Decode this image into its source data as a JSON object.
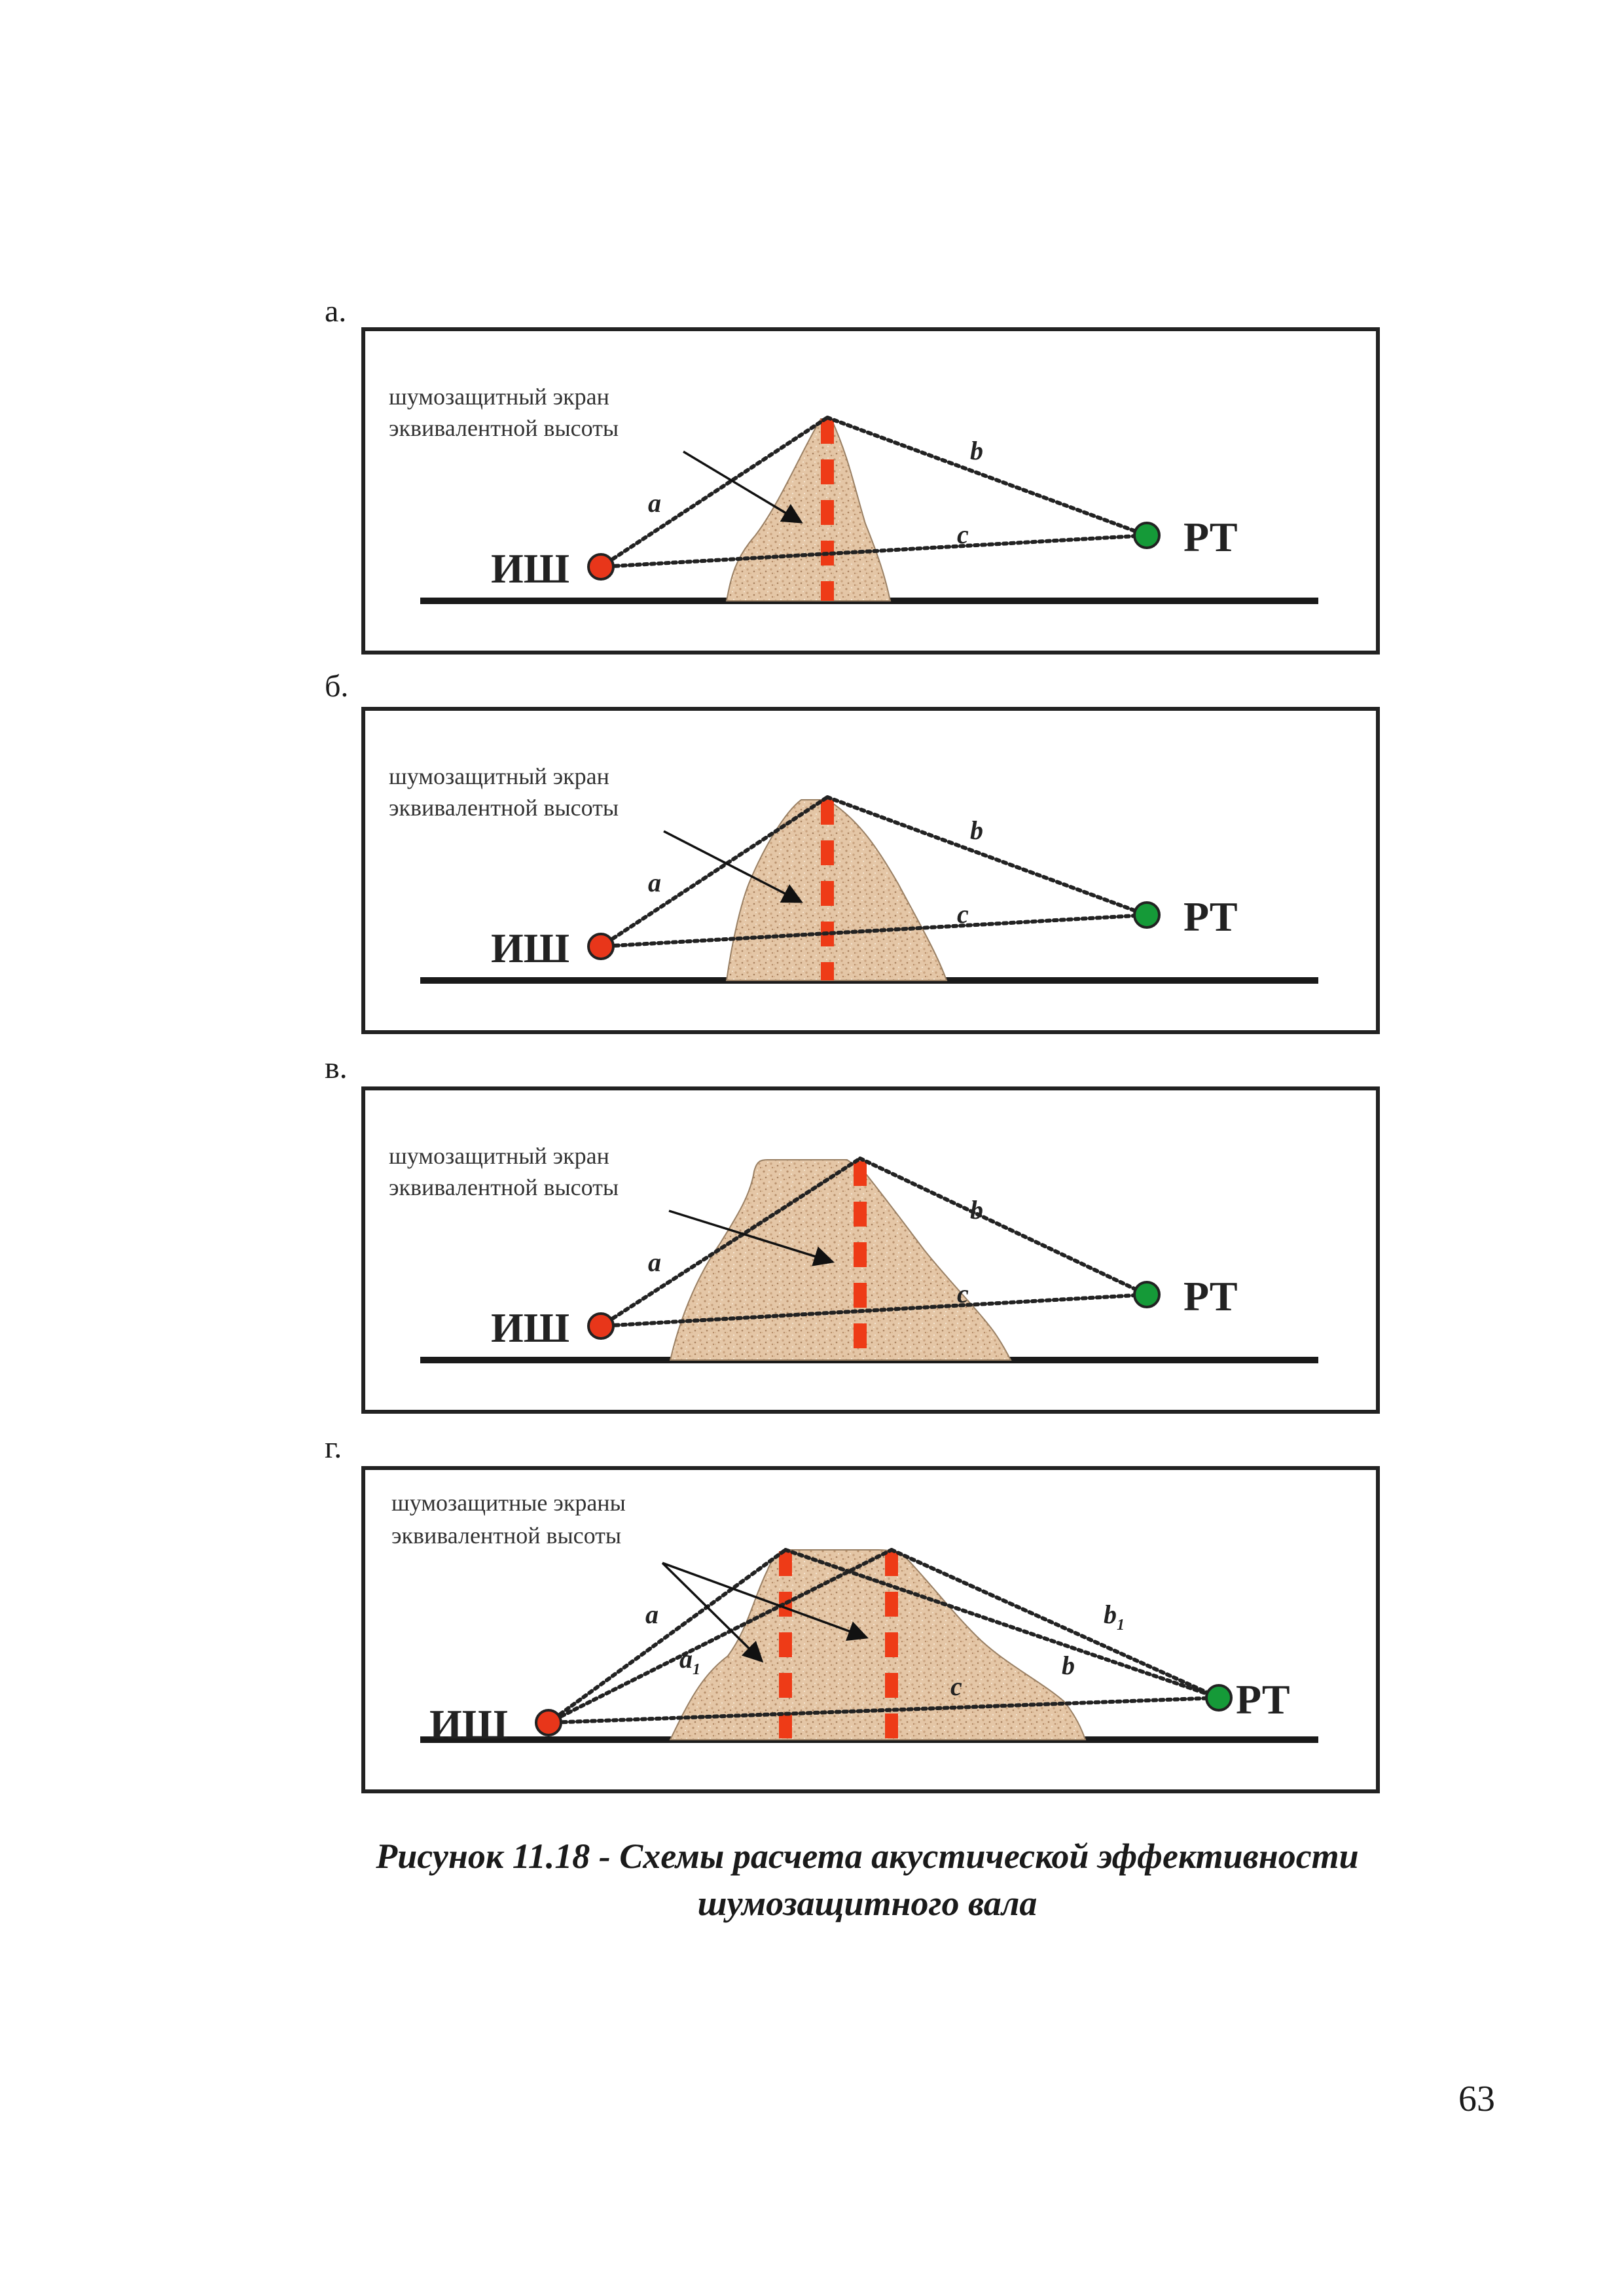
{
  "panels": [
    {
      "letter": "а.",
      "note_line1": "шумозащитный экран",
      "note_line2": "эквивалентной высоты",
      "source_label": "ИШ",
      "receiver_label": "РТ",
      "ray_a": "a",
      "ray_b": "b",
      "ray_c": "c"
    },
    {
      "letter": "б.",
      "note_line1": "шумозащитный экран",
      "note_line2": "эквивалентной высоты",
      "source_label": "ИШ",
      "receiver_label": "РТ",
      "ray_a": "a",
      "ray_b": "b",
      "ray_c": "c"
    },
    {
      "letter": "в.",
      "note_line1": "шумозащитный экран",
      "note_line2": "эквивалентной высоты",
      "source_label": "ИШ",
      "receiver_label": "РТ",
      "ray_a": "a",
      "ray_b": "b",
      "ray_c": "c"
    },
    {
      "letter": "г.",
      "note_line1": "шумозащитные экраны",
      "note_line2": "эквивалентной высоты",
      "source_label": "ИШ",
      "receiver_label": "РТ",
      "ray_a": "a",
      "ray_a1": "a",
      "ray_a1_sub": "1",
      "ray_b": "b",
      "ray_b1": "b",
      "ray_b1_sub": "1",
      "ray_c": "c"
    }
  ],
  "caption_line1": "Рисунок 11.18 - Схемы расчета акустической эффективности",
  "caption_line2": "шумозащитного вала",
  "page_number": "63",
  "colors": {
    "source": "#e8361a",
    "receiver": "#159a38",
    "screen": "#ee3b17",
    "mound": "#e2c2a2"
  }
}
